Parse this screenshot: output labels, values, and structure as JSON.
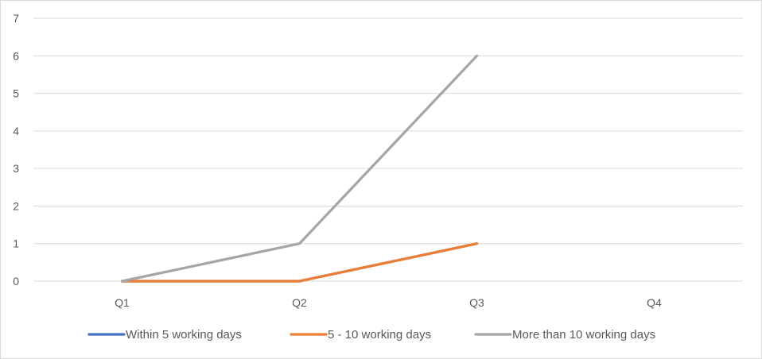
{
  "chart_data": {
    "type": "line",
    "title": "",
    "xlabel": "",
    "ylabel": "",
    "categories": [
      "Q1",
      "Q2",
      "Q3",
      "Q4"
    ],
    "ylim": [
      0,
      7
    ],
    "yticks": [
      0,
      1,
      2,
      3,
      4,
      5,
      6,
      7
    ],
    "grid": true,
    "legend_position": "bottom",
    "series": [
      {
        "name": "Within 5 working days",
        "values": [
          0,
          0,
          1,
          null
        ],
        "color": "#4472C4"
      },
      {
        "name": "5 - 10 working days",
        "values": [
          0,
          0,
          1,
          null
        ],
        "color": "#ED7D31"
      },
      {
        "name": "More than 10 working days",
        "values": [
          0,
          1,
          6,
          null
        ],
        "color": "#A5A5A5"
      }
    ]
  }
}
